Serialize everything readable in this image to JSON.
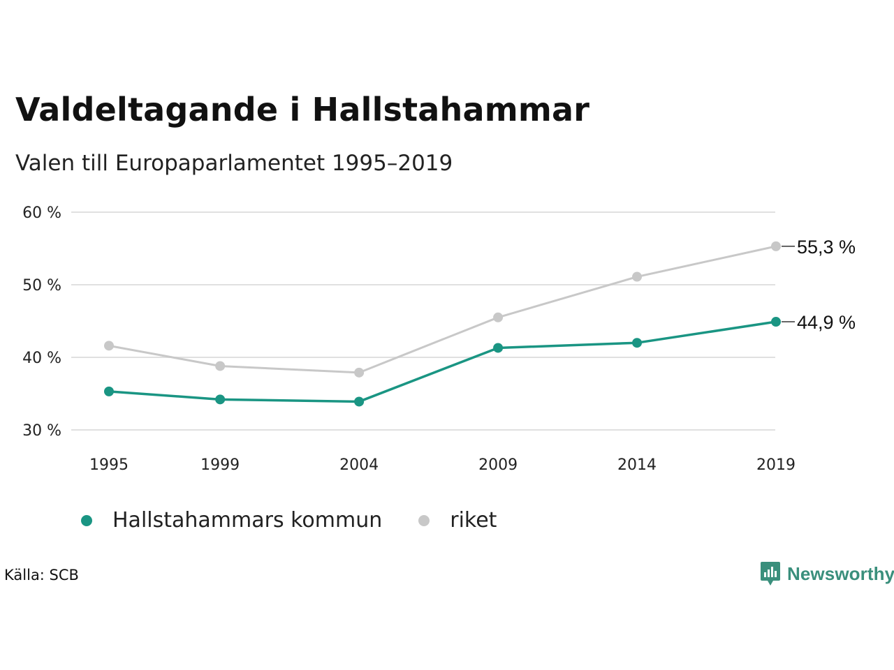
{
  "header": {
    "title": "Valdeltagande i Hallstahammar",
    "subtitle": "Valen till Europaparlamentet 1995–2019"
  },
  "footer": {
    "source": "Källa: SCB",
    "brand": "Newsworthy"
  },
  "colors": {
    "kommun": "#1a9583",
    "riket": "#c8c8c8",
    "grid": "#e0e0e0",
    "brand": "#3a8f7c"
  },
  "chart_data": {
    "type": "line",
    "x": [
      1995,
      1999,
      2004,
      2009,
      2014,
      2019
    ],
    "x_tick_labels": [
      "1995",
      "1999",
      "2004",
      "2009",
      "2014",
      "2019"
    ],
    "y_ticks": [
      30,
      40,
      50,
      60
    ],
    "y_tick_labels": [
      "30 %",
      "40 %",
      "50 %",
      "60 %"
    ],
    "ylim": [
      30,
      60
    ],
    "grid": true,
    "legend_position": "bottom",
    "series": [
      {
        "name": "Hallstahammars kommun",
        "key": "kommun",
        "values": [
          35.3,
          34.2,
          33.9,
          41.3,
          42.0,
          44.9
        ],
        "end_label": "44,9 %"
      },
      {
        "name": "riket",
        "key": "riket",
        "values": [
          41.6,
          38.8,
          37.9,
          45.5,
          51.1,
          55.3
        ],
        "end_label": "55,3 %"
      }
    ]
  }
}
